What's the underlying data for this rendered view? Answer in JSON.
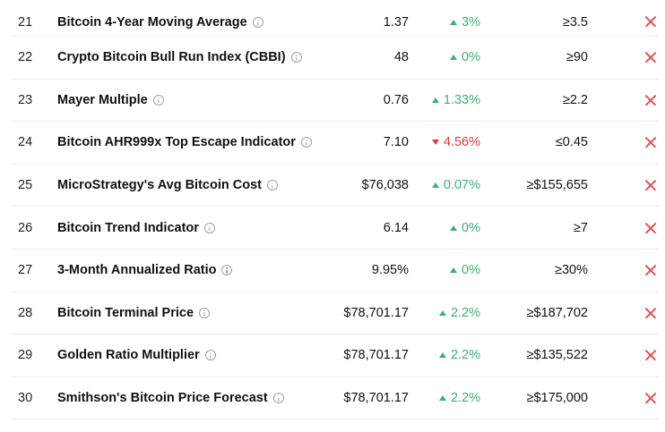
{
  "colors": {
    "up": "#3bb273",
    "down": "#dd3a3a",
    "status_x": "#e05252",
    "divider": "#ececec"
  },
  "rows": [
    {
      "rank": "21",
      "name": "Bitcoin 4-Year Moving Average",
      "value": "1.37",
      "change": "3%",
      "direction": "up",
      "target": "≥3.5",
      "status_icon": "x-icon"
    },
    {
      "rank": "22",
      "name": "Crypto Bitcoin Bull Run Index (CBBI)",
      "value": "48",
      "change": "0%",
      "direction": "up",
      "target": "≥90",
      "status_icon": "x-icon"
    },
    {
      "rank": "23",
      "name": "Mayer Multiple",
      "value": "0.76",
      "change": "1.33%",
      "direction": "up",
      "target": "≥2.2",
      "status_icon": "x-icon"
    },
    {
      "rank": "24",
      "name": "Bitcoin AHR999x Top Escape Indicator",
      "value": "7.10",
      "change": "4.56%",
      "direction": "down",
      "target": "≤0.45",
      "status_icon": "x-icon"
    },
    {
      "rank": "25",
      "name": "MicroStrategy's Avg Bitcoin Cost",
      "value": "$76,038",
      "change": "0.07%",
      "direction": "up",
      "target": "≥$155,655",
      "status_icon": "x-icon"
    },
    {
      "rank": "26",
      "name": "Bitcoin Trend Indicator",
      "value": "6.14",
      "change": "0%",
      "direction": "up",
      "target": "≥7",
      "status_icon": "x-icon"
    },
    {
      "rank": "27",
      "name": "3-Month Annualized Ratio",
      "value": "9.95%",
      "change": "0%",
      "direction": "up",
      "target": "≥30%",
      "status_icon": "x-icon"
    },
    {
      "rank": "28",
      "name": "Bitcoin Terminal Price",
      "value": "$78,701.17",
      "change": "2.2%",
      "direction": "up",
      "target": "≥$187,702",
      "status_icon": "x-icon"
    },
    {
      "rank": "29",
      "name": "Golden Ratio Multiplier",
      "value": "$78,701.17",
      "change": "2.2%",
      "direction": "up",
      "target": "≥$135,522",
      "status_icon": "x-icon"
    },
    {
      "rank": "30",
      "name": "Smithson's Bitcoin Price Forecast",
      "value": "$78,701.17",
      "change": "2.2%",
      "direction": "up",
      "target": "≥$175,000",
      "status_icon": "x-icon"
    }
  ]
}
